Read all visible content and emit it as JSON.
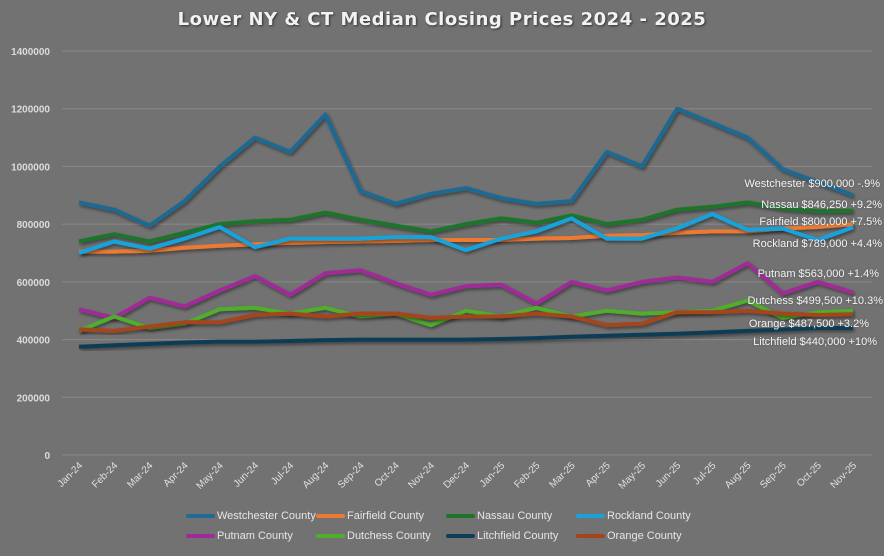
{
  "chart_data": {
    "type": "line",
    "title": "Lower NY & CT Median Closing Prices 2024 - 2025",
    "xlabel": "",
    "ylabel": "",
    "ylim": [
      0,
      1400000
    ],
    "yticks": [
      0,
      200000,
      400000,
      600000,
      800000,
      1000000,
      1200000,
      1400000
    ],
    "grid": true,
    "legend_position": "bottom",
    "categories": [
      "Jan-24",
      "Feb-24",
      "Mar-24",
      "Apr-24",
      "May-24",
      "Jun-24",
      "Jul-24",
      "Aug-24",
      "Sep-24",
      "Oct-24",
      "Nov-24",
      "Dec-24",
      "Jan-25",
      "Feb-25",
      "Mar-25",
      "Apr-25",
      "May-25",
      "Jun-25",
      "Jul-25",
      "Aug-25",
      "Sep-25",
      "Oct-25",
      "Nov-25"
    ],
    "series": [
      {
        "name": "Westchester County",
        "color": "#1f6b93",
        "values": [
          875000,
          850000,
          795000,
          880000,
          1000000,
          1100000,
          1050000,
          1180000,
          915000,
          870000,
          905000,
          925000,
          890000,
          870000,
          880000,
          1050000,
          1000000,
          1200000,
          1150000,
          1100000,
          990000,
          945000,
          900000
        ]
      },
      {
        "name": "Fairfield County",
        "color": "#ee7a32",
        "values": [
          705000,
          705000,
          708000,
          718000,
          725000,
          730000,
          735000,
          738000,
          740000,
          742000,
          745000,
          745000,
          745000,
          750000,
          752000,
          760000,
          762000,
          770000,
          775000,
          775000,
          785000,
          790000,
          800000
        ]
      },
      {
        "name": "Nassau County",
        "color": "#1d7429",
        "values": [
          740000,
          765000,
          740000,
          770000,
          800000,
          810000,
          815000,
          840000,
          815000,
          795000,
          775000,
          800000,
          820000,
          805000,
          830000,
          800000,
          815000,
          850000,
          860000,
          875000,
          855000,
          845000,
          846250
        ]
      },
      {
        "name": "Rockland County",
        "color": "#19a3dc",
        "values": [
          700000,
          740000,
          715000,
          750000,
          790000,
          720000,
          750000,
          750000,
          750000,
          755000,
          755000,
          710000,
          750000,
          775000,
          820000,
          750000,
          750000,
          785000,
          835000,
          780000,
          785000,
          745000,
          789000
        ]
      },
      {
        "name": "Putnam County",
        "color": "#a02b98",
        "values": [
          505000,
          475000,
          545000,
          515000,
          570000,
          620000,
          555000,
          630000,
          640000,
          595000,
          555000,
          585000,
          590000,
          525000,
          600000,
          570000,
          600000,
          615000,
          600000,
          665000,
          560000,
          600000,
          563000
        ]
      },
      {
        "name": "Dutchess County",
        "color": "#4fae2b",
        "values": [
          430000,
          480000,
          440000,
          455000,
          505000,
          510000,
          490000,
          510000,
          480000,
          490000,
          450000,
          500000,
          480000,
          510000,
          480000,
          500000,
          490000,
          495000,
          500000,
          535000,
          475000,
          495000,
          499500
        ]
      },
      {
        "name": "Litchfield County",
        "color": "#0f3c56",
        "values": [
          375000,
          380000,
          385000,
          390000,
          393000,
          393000,
          395000,
          398000,
          400000,
          400000,
          400000,
          400000,
          402000,
          405000,
          410000,
          413000,
          417000,
          420000,
          425000,
          430000,
          435000,
          440000,
          440000
        ]
      },
      {
        "name": "Orange County",
        "color": "#a5441a",
        "values": [
          435000,
          430000,
          445000,
          460000,
          460000,
          485000,
          490000,
          480000,
          490000,
          490000,
          475000,
          480000,
          480000,
          490000,
          480000,
          450000,
          455000,
          495000,
          495000,
          500000,
          490000,
          485000,
          487500
        ]
      }
    ],
    "annotations": [
      "Westchester $900,000 -.9%",
      "Nassau $846,250 +9.2%",
      "Fairfield $800,000 +7.5%",
      "Rockland $789,000 +4.4%",
      "Putnam $563,000 +1.4%",
      "Dutchess $499,500 +10.3%",
      "Orange $487,500 +3.2%",
      "Litchfield $440,000 +10%"
    ]
  },
  "colors": {
    "background": "#727272",
    "gridline": "#8a8a8a",
    "text": "#e6e6e6"
  }
}
